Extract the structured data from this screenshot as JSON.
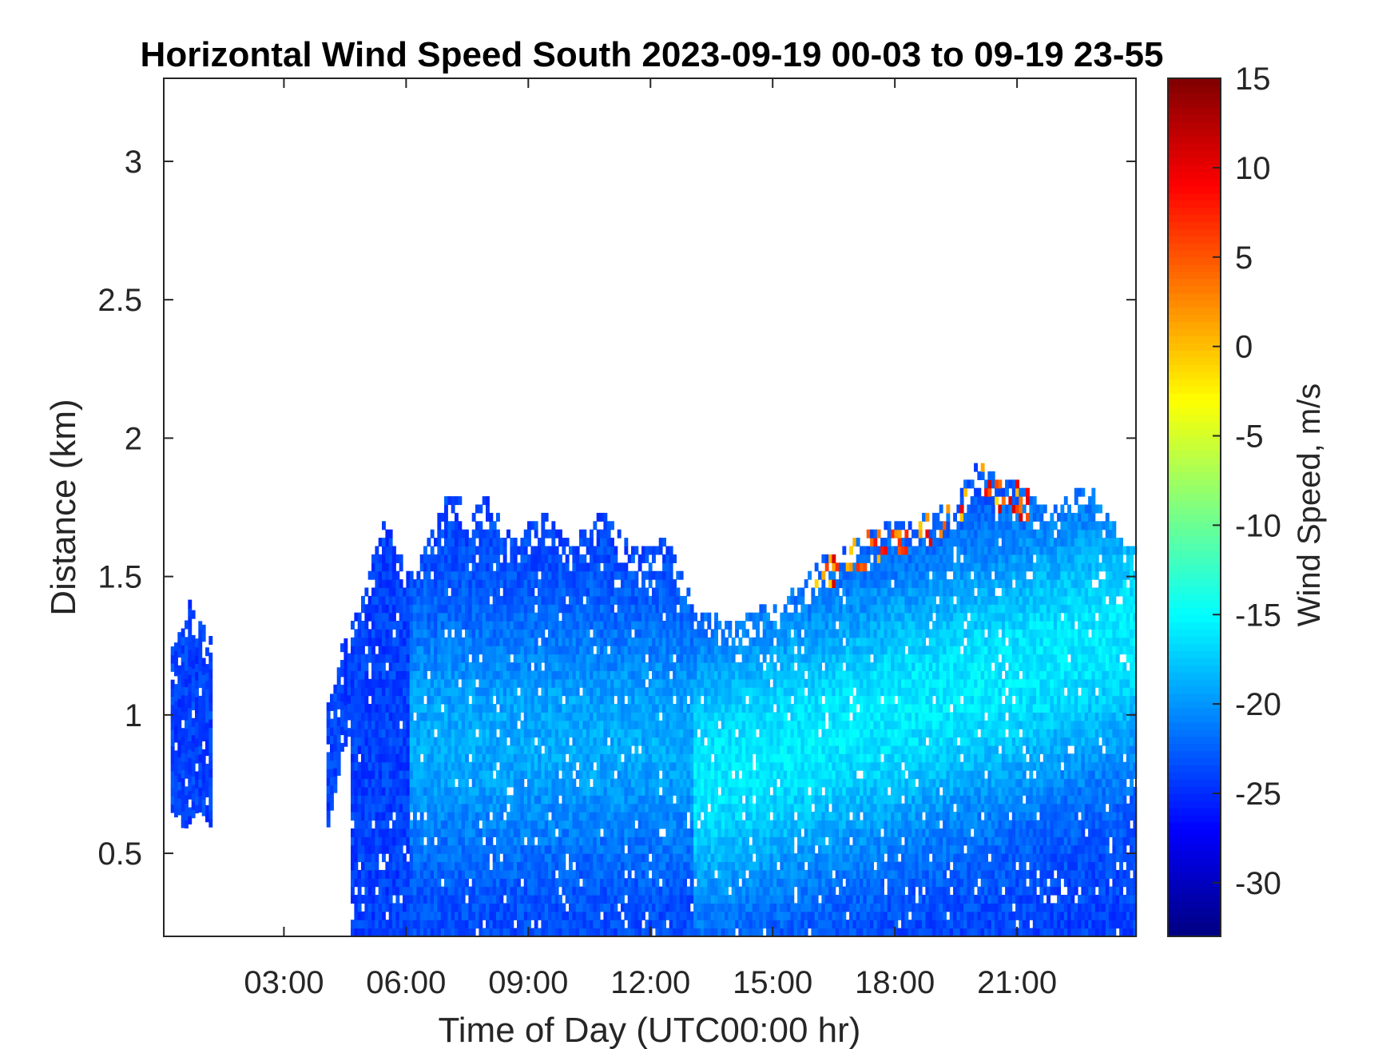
{
  "chart_data": {
    "type": "heatmap",
    "title": "Horizontal Wind Speed South 2023-09-19 00-03 to 09-19 23-55",
    "xlabel": "Time of Day (UTC00:00 hr)",
    "ylabel": "Distance (km)",
    "x_ticks": [
      "03:00",
      "06:00",
      "09:00",
      "12:00",
      "15:00",
      "18:00",
      "21:00"
    ],
    "x_tick_hours": [
      3,
      6,
      9,
      12,
      15,
      18,
      21
    ],
    "xlim_hours": [
      0.05,
      23.92
    ],
    "y_ticks": [
      "0.5",
      "1",
      "1.5",
      "2",
      "2.5",
      "3"
    ],
    "y_tick_values": [
      0.5,
      1,
      1.5,
      2,
      2.5,
      3
    ],
    "ylim_km": [
      0.2,
      3.3
    ],
    "colorbar": {
      "label": "Wind Speed, m/s",
      "colormap": "jet",
      "range": [
        -33,
        15
      ],
      "ticks": [
        "15",
        "10",
        "5",
        "0",
        "-5",
        "-10",
        "-15",
        "-20",
        "-25",
        "-30"
      ],
      "tick_values": [
        15,
        10,
        5,
        0,
        -5,
        -10,
        -15,
        -20,
        -25,
        -30
      ]
    },
    "data_coverage": [
      {
        "t_start": 0.2,
        "t_end": 1.2,
        "z_bottom": 0.6,
        "z_top": 1.45,
        "speed": -23
      },
      {
        "t_start": 4.0,
        "t_end": 24.0,
        "z_bottom": 0.2,
        "z_top_range": [
          1.3,
          1.95
        ],
        "speed_range": [
          -25,
          -15
        ]
      },
      {
        "feature": "warm streaks",
        "t_start": 16.0,
        "t_end": 21.3,
        "z_range": [
          1.3,
          1.8
        ],
        "speed_range": [
          0,
          12
        ]
      }
    ],
    "grid": false,
    "legend": "none"
  }
}
